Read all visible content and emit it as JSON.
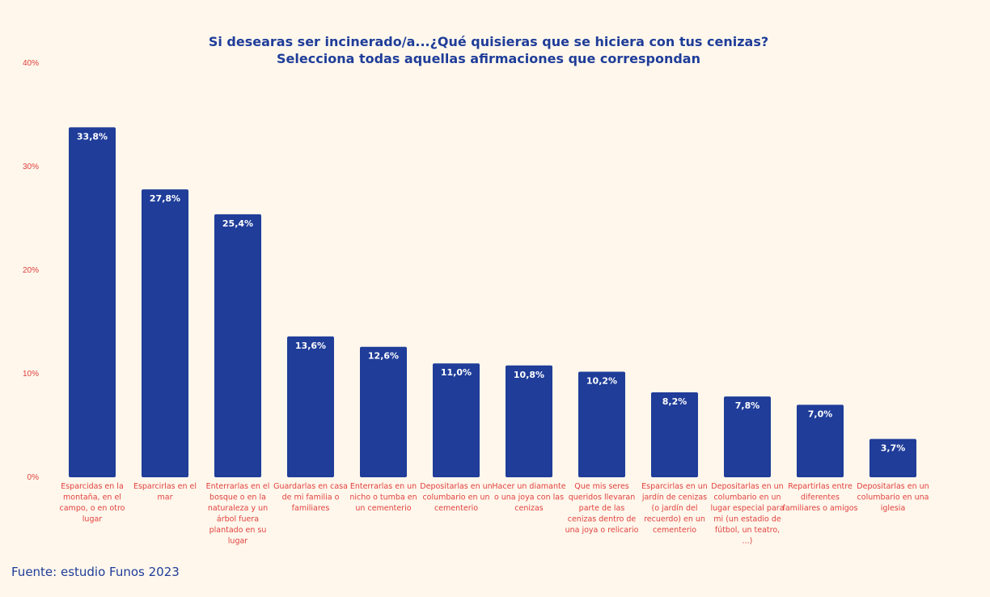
{
  "colors": {
    "background": "#fff7ec",
    "bar": "#1f3d99",
    "title": "#1f3d99",
    "axis_text": "#e0413d",
    "value_label": "#ffffff",
    "source": "#1f3d99"
  },
  "source_note": "Fuente: estudio Funos 2023",
  "chart_data": {
    "type": "bar",
    "title": [
      "Si desearas ser incinerado/a...¿Qué quisieras que se hiciera con tus cenizas?",
      "Selecciona todas aquellas afirmaciones que correspondan"
    ],
    "xlabel": "",
    "ylabel": "",
    "ylim": [
      0,
      40
    ],
    "y_ticks": [
      "0%",
      "10%",
      "20%",
      "30%",
      "40%"
    ],
    "y_tick_values": [
      0,
      10,
      20,
      30,
      40
    ],
    "grid": false,
    "legend": "none",
    "value_labels": [
      "33,8%",
      "27,8%",
      "25,4%",
      "13,6%",
      "12,6%",
      "11,0%",
      "10,8%",
      "10,2%",
      "8,2%",
      "7,8%",
      "7,0%",
      "3,7%"
    ],
    "values": [
      33.8,
      27.8,
      25.4,
      13.6,
      12.6,
      11.0,
      10.8,
      10.2,
      8.2,
      7.8,
      7.0,
      3.7
    ],
    "categories": [
      [
        "Esparcidas en la",
        "montaña, en el",
        "campo, o en otro",
        "lugar"
      ],
      [
        "Esparcirlas en el",
        "mar"
      ],
      [
        "Enterrarlas en el",
        "bosque o en la",
        "naturaleza y un",
        "árbol fuera",
        "plantado en su",
        "lugar"
      ],
      [
        "Guardarlas en casa",
        "de mi familia o",
        "familiares"
      ],
      [
        "Enterrarlas en un",
        "nicho o tumba en",
        "un cementerio"
      ],
      [
        "Depositarlas en un",
        "columbario en un",
        "cementerio"
      ],
      [
        "Hacer un diamante",
        "o una joya con las",
        "cenizas"
      ],
      [
        "Que mis seres",
        "queridos llevaran",
        "parte de las",
        "cenizas dentro de",
        "una joya o relicario"
      ],
      [
        "Esparcirlas en un",
        "jardín de cenizas",
        "(o jardín del",
        "recuerdo) en un",
        "cementerio"
      ],
      [
        "Depositarlas en un",
        "columbario en un",
        "lugar especial para",
        "mi (un estadio de",
        "fútbol, un teatro,",
        "...)"
      ],
      [
        "Repartirlas entre",
        "diferentes",
        "familiares o amigos"
      ],
      [
        "Depositarlas en un",
        "columbario en una",
        "iglesia"
      ]
    ]
  }
}
